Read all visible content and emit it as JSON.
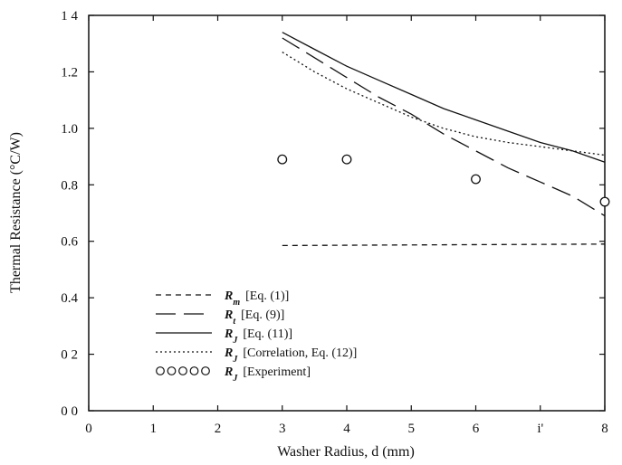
{
  "chart_data": {
    "type": "line",
    "xlabel": "Washer Radius, d (mm)",
    "ylabel": "Thermal Resistance (°C/W)",
    "xlim": [
      0,
      8
    ],
    "ylim": [
      0,
      1.4
    ],
    "x_tick_labels": [
      "0",
      "1",
      "2",
      "3",
      "4",
      "5",
      "6",
      "i'",
      "8"
    ],
    "y_tick_labels": [
      "0 0",
      "0 2",
      "0.4",
      "0.6",
      "0.8",
      "1.0",
      "1.2",
      "1 4"
    ],
    "grid": false,
    "legend_position": "bottom-left",
    "series": [
      {
        "symbol": "R_m",
        "name": "[Eq. (1)]",
        "style": "short-dash",
        "x": [
          3,
          8
        ],
        "y": [
          0.585,
          0.59
        ]
      },
      {
        "symbol": "R_t",
        "name": "[Eq. (9)]",
        "style": "long-dash",
        "x": [
          3,
          3.5,
          4,
          4.5,
          5,
          5.5,
          6,
          6.5,
          7,
          7.5,
          8
        ],
        "y": [
          1.32,
          1.25,
          1.18,
          1.11,
          1.05,
          0.98,
          0.92,
          0.86,
          0.81,
          0.76,
          0.69
        ]
      },
      {
        "symbol": "R_J",
        "name": "[Eq. (11)]",
        "style": "solid",
        "x": [
          3,
          3.5,
          4,
          4.5,
          5,
          5.5,
          6,
          6.5,
          7,
          7.5,
          8
        ],
        "y": [
          1.34,
          1.28,
          1.22,
          1.17,
          1.12,
          1.07,
          1.03,
          0.99,
          0.95,
          0.92,
          0.88
        ]
      },
      {
        "symbol": "R_J",
        "name": "[Correlation, Eq. (12)]",
        "style": "dotted",
        "x": [
          3,
          3.5,
          4,
          4.5,
          5,
          5.5,
          6,
          6.5,
          7,
          7.5,
          8
        ],
        "y": [
          1.27,
          1.2,
          1.14,
          1.09,
          1.04,
          1.0,
          0.97,
          0.95,
          0.935,
          0.92,
          0.905
        ]
      },
      {
        "symbol": "R_J",
        "name": "[Experiment]",
        "style": "circles",
        "x": [
          3,
          4,
          6,
          8
        ],
        "y": [
          0.89,
          0.89,
          0.82,
          0.74
        ]
      }
    ]
  }
}
